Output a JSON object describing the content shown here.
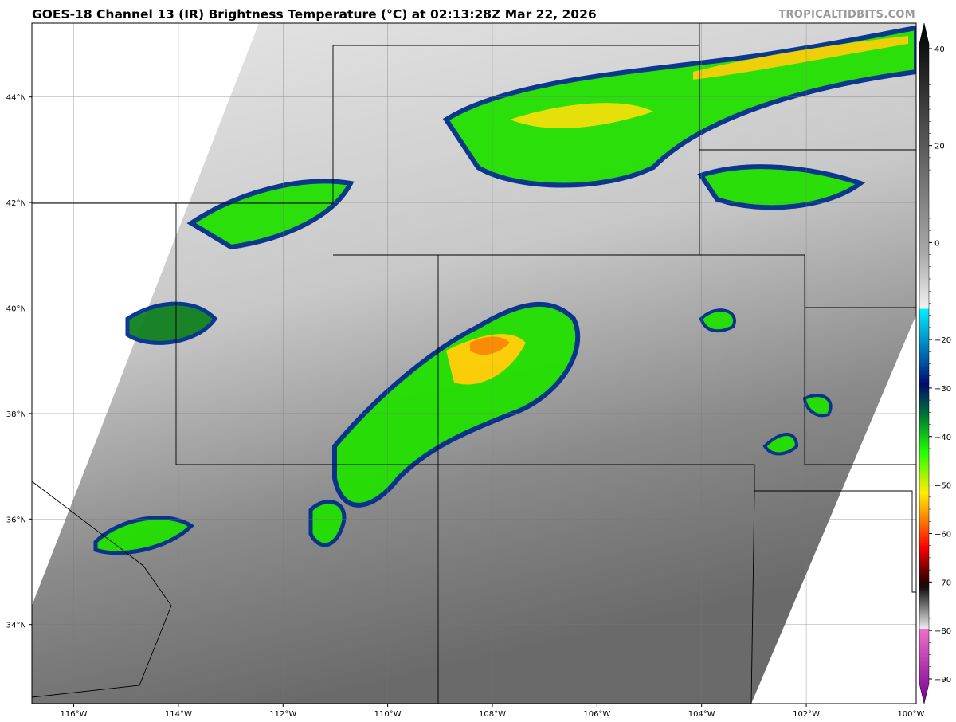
{
  "title": "GOES-18 Channel 13 (IR) Brightness Temperature (°C) at 02:13:28Z Mar 22, 2026",
  "watermark": "TROPICALTIDBITS.COM",
  "map": {
    "lon_labels": [
      "116°W",
      "114°W",
      "112°W",
      "110°W",
      "108°W",
      "106°W",
      "104°W",
      "102°W",
      "100°W"
    ],
    "lon_values": [
      -116,
      -114,
      -112,
      -110,
      -108,
      -106,
      -104,
      -102,
      -100
    ],
    "lat_labels": [
      "44°N",
      "42°N",
      "40°N",
      "38°N",
      "36°N",
      "34°N"
    ],
    "lat_values": [
      44,
      42,
      40,
      38,
      36,
      34
    ],
    "extent": {
      "lon": [
        -116.8,
        -99.9
      ],
      "lat": [
        32.5,
        45.4
      ]
    }
  },
  "colorbar": {
    "ticks": [
      "40",
      "20",
      "0",
      "−20",
      "−30",
      "−40",
      "−50",
      "−60",
      "−70",
      "−80",
      "−90"
    ],
    "tick_values": [
      40,
      20,
      0,
      -20,
      -30,
      -40,
      -50,
      -60,
      -70,
      -80,
      -90
    ],
    "range": [
      -95,
      45
    ],
    "colors": {
      "warm_black": "#000000",
      "gray": "#808080",
      "white": "#f0f0f0",
      "cyan": "#00e5ff",
      "navy": "#00107a",
      "green": "#1cff00",
      "yellow": "#ffe800",
      "red": "#ff0000",
      "dark": "#000000",
      "pink": "#f070c8",
      "purple": "#700090"
    }
  }
}
